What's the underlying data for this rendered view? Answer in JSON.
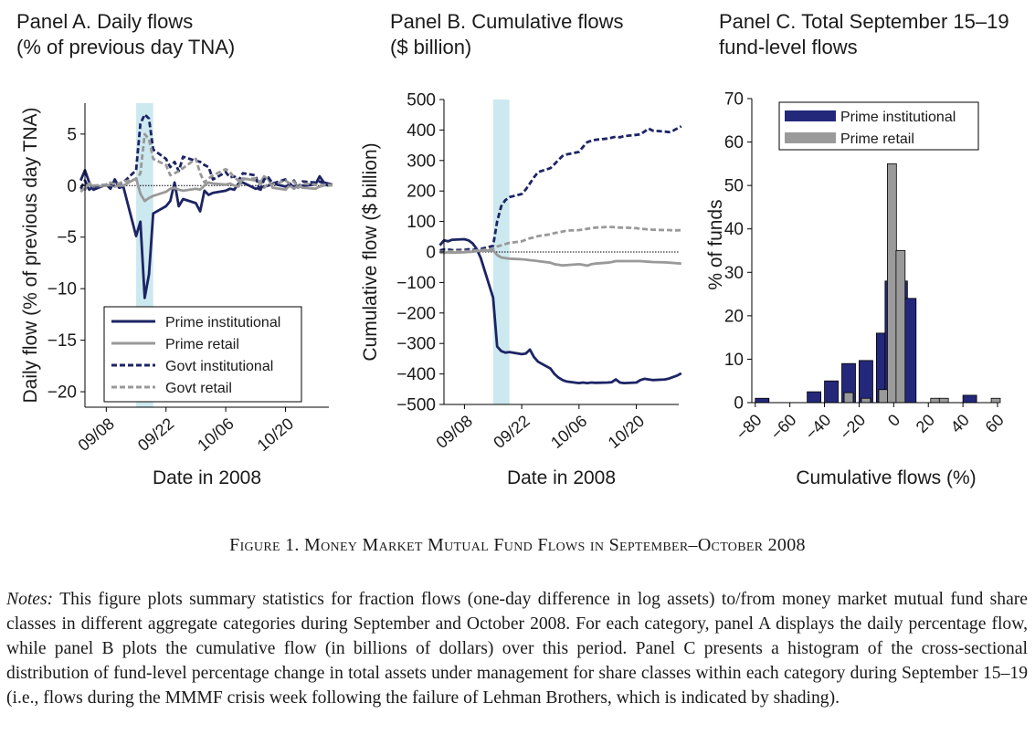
{
  "panels": {
    "a": {
      "title_line1": "Panel A. Daily flows",
      "title_line2": "(% of previous day TNA)"
    },
    "b": {
      "title_line1": "Panel B. Cumulative flows",
      "title_line2": "($ billion)"
    },
    "c": {
      "title_line1": "Panel C. Total September 15–19",
      "title_line2": "fund-level flows"
    }
  },
  "caption": "Figure 1. Money Market Mutual Fund Flows in September–October 2008",
  "notes": {
    "label": "Notes:",
    "text": " This figure plots summary statistics for fraction flows (one-day difference in log assets) to/from money market mutual fund share classes in different aggregate categories during September and October 2008. For each category, panel A displays the daily percentage flow, while panel B plots the cumulative flow (in billions of dollars) over this period. Panel C presents a histogram of the cross-sectional distribution of fund-level percentage change in total assets under management for share classes within each category during September 15–19 (i.e., flows during the MMMF crisis week following the failure of Lehman Brothers, which is indicated by shading)."
  },
  "colors": {
    "navy": "#1c2464",
    "gray": "#999999",
    "shade": "#cde9f0",
    "bar_navy": "#24287a",
    "bar_gray": "#9a9a9a"
  },
  "chart_data": [
    {
      "type": "line",
      "xlabel": "Date in 2008",
      "ylabel": "Daily flow (% of previous day TNA)",
      "ylim": [
        -21.5,
        8
      ],
      "yticks": [
        5,
        0,
        -5,
        -10,
        -15,
        -20
      ],
      "ytick_labels": [
        "5",
        "0",
        "−5",
        "−10",
        "−15",
        "−20"
      ],
      "xticks": [
        "09/08",
        "09/22",
        "10/06",
        "10/20"
      ],
      "shaded_period": [
        "2008-09-15",
        "2008-09-19"
      ],
      "legend_position": "lower-right",
      "x": [
        "2008-09-02",
        "2008-09-03",
        "2008-09-04",
        "2008-09-05",
        "2008-09-08",
        "2008-09-09",
        "2008-09-10",
        "2008-09-11",
        "2008-09-12",
        "2008-09-15",
        "2008-09-16",
        "2008-09-17",
        "2008-09-18",
        "2008-09-19",
        "2008-09-22",
        "2008-09-23",
        "2008-09-24",
        "2008-09-25",
        "2008-09-26",
        "2008-09-29",
        "2008-09-30",
        "2008-10-01",
        "2008-10-02",
        "2008-10-03",
        "2008-10-06",
        "2008-10-07",
        "2008-10-08",
        "2008-10-09",
        "2008-10-10",
        "2008-10-13",
        "2008-10-14",
        "2008-10-15",
        "2008-10-16",
        "2008-10-17",
        "2008-10-20",
        "2008-10-21",
        "2008-10-22",
        "2008-10-23",
        "2008-10-24",
        "2008-10-27",
        "2008-10-28",
        "2008-10-29",
        "2008-10-30",
        "2008-10-31"
      ],
      "series": [
        {
          "name": "Prime institutional",
          "style": "solid",
          "color": "navy",
          "values": [
            0.5,
            1.5,
            0.3,
            -0.4,
            0.1,
            -0.3,
            0.6,
            -0.2,
            -0.1,
            -4.9,
            -3.5,
            -10.9,
            -8.6,
            -2.7,
            -2.0,
            -1.5,
            0.3,
            -2.0,
            -1.3,
            -1.7,
            -2.5,
            -0.5,
            -0.9,
            -0.7,
            -0.5,
            -0.3,
            -0.4,
            0.2,
            0.3,
            -0.3,
            -0.2,
            -0.1,
            0.0,
            0.2,
            -0.1,
            0.1,
            -0.1,
            0.0,
            0.0,
            0.1,
            0.9,
            0.3,
            0.2,
            0.1
          ]
        },
        {
          "name": "Prime retail",
          "style": "solid",
          "color": "gray",
          "values": [
            -0.3,
            -0.4,
            0.2,
            -0.1,
            0.0,
            0.1,
            -0.1,
            0.0,
            0.0,
            0.7,
            -0.8,
            -1.5,
            -1.2,
            -1.0,
            -0.6,
            -0.3,
            -0.2,
            -0.4,
            -0.5,
            -0.3,
            -0.4,
            0.0,
            0.3,
            0.2,
            0.1,
            0.2,
            0.0,
            -0.1,
            0.7,
            0.5,
            0.2,
            0.9,
            0.6,
            -0.2,
            -0.4,
            0.0,
            -0.3,
            0.0,
            -0.2,
            -0.3,
            -0.1,
            0.0,
            0.1,
            0.0
          ]
        },
        {
          "name": "Govt institutional",
          "style": "dashed",
          "color": "navy",
          "values": [
            -0.3,
            0.5,
            -0.4,
            -0.1,
            0.1,
            0.2,
            0.0,
            0.2,
            0.3,
            1.5,
            6.0,
            6.9,
            6.5,
            3.5,
            2.6,
            1.8,
            2.3,
            1.4,
            2.8,
            2.4,
            2.3,
            2.0,
            1.8,
            0.6,
            1.3,
            0.8,
            0.9,
            0.5,
            1.2,
            1.0,
            -0.6,
            0.6,
            0.8,
            0.2,
            0.6,
            0.1,
            0.5,
            -0.2,
            0.4,
            0.3,
            0.4,
            0.2,
            0.0,
            0.1
          ]
        },
        {
          "name": "Govt retail",
          "style": "dashed",
          "color": "gray",
          "values": [
            -0.6,
            -0.2,
            0.2,
            0.0,
            0.1,
            0.3,
            0.1,
            0.2,
            0.4,
            0.6,
            1.2,
            5.0,
            4.5,
            2.6,
            2.0,
            1.0,
            1.2,
            1.4,
            1.7,
            2.6,
            1.2,
            0.3,
            0.7,
            1.0,
            1.6,
            1.3,
            0.8,
            0.5,
            0.6,
            0.7,
            0.4,
            -0.2,
            0.2,
            0.1,
            0.5,
            0.2,
            0.4,
            -0.2,
            0.2,
            0.1,
            0.0,
            0.1,
            0.0,
            0.1
          ]
        }
      ]
    },
    {
      "type": "line",
      "xlabel": "Date in 2008",
      "ylabel": "Cumulative flow ($ billion)",
      "ylim": [
        -500,
        500
      ],
      "yticks": [
        500,
        400,
        300,
        200,
        100,
        0,
        -100,
        -200,
        -300,
        -400,
        -500
      ],
      "ytick_labels": [
        "500",
        "400",
        "300",
        "200",
        "100",
        "0",
        "−100",
        "−200",
        "−300",
        "−400",
        "−500"
      ],
      "xticks": [
        "09/08",
        "09/22",
        "10/06",
        "10/20"
      ],
      "shaded_period": [
        "2008-09-15",
        "2008-09-19"
      ],
      "x": [
        "2008-09-02",
        "2008-09-03",
        "2008-09-04",
        "2008-09-05",
        "2008-09-08",
        "2008-09-09",
        "2008-09-10",
        "2008-09-11",
        "2008-09-12",
        "2008-09-15",
        "2008-09-16",
        "2008-09-17",
        "2008-09-18",
        "2008-09-19",
        "2008-09-22",
        "2008-09-23",
        "2008-09-24",
        "2008-09-25",
        "2008-09-26",
        "2008-09-29",
        "2008-09-30",
        "2008-10-01",
        "2008-10-02",
        "2008-10-03",
        "2008-10-06",
        "2008-10-07",
        "2008-10-08",
        "2008-10-09",
        "2008-10-10",
        "2008-10-13",
        "2008-10-14",
        "2008-10-15",
        "2008-10-16",
        "2008-10-17",
        "2008-10-20",
        "2008-10-21",
        "2008-10-22",
        "2008-10-23",
        "2008-10-24",
        "2008-10-27",
        "2008-10-28",
        "2008-10-29",
        "2008-10-30",
        "2008-10-31"
      ],
      "series": [
        {
          "name": "Prime institutional",
          "style": "solid",
          "color": "navy",
          "values": [
            22,
            38,
            35,
            40,
            42,
            38,
            28,
            10,
            -20,
            -150,
            -310,
            -325,
            -330,
            -328,
            -335,
            -333,
            -320,
            -345,
            -360,
            -382,
            -400,
            -412,
            -420,
            -425,
            -430,
            -428,
            -430,
            -428,
            -429,
            -428,
            -427,
            -418,
            -428,
            -430,
            -428,
            -420,
            -416,
            -418,
            -420,
            -418,
            -415,
            -410,
            -405,
            -398
          ]
        },
        {
          "name": "Prime retail",
          "style": "solid",
          "color": "gray",
          "values": [
            -2,
            -3,
            -1,
            -2,
            -1,
            0,
            1,
            3,
            4,
            5,
            -10,
            -18,
            -20,
            -22,
            -24,
            -25,
            -27,
            -28,
            -30,
            -35,
            -40,
            -42,
            -44,
            -43,
            -40,
            -42,
            -45,
            -40,
            -38,
            -35,
            -33,
            -30,
            -30,
            -30,
            -30,
            -30,
            -31,
            -32,
            -33,
            -34,
            -35,
            -36,
            -37,
            -38
          ]
        },
        {
          "name": "Govt institutional",
          "style": "dashed",
          "color": "navy",
          "values": [
            5,
            8,
            8,
            6,
            7,
            9,
            7,
            8,
            10,
            20,
            100,
            150,
            170,
            180,
            190,
            205,
            225,
            245,
            262,
            275,
            288,
            302,
            315,
            320,
            328,
            345,
            360,
            365,
            368,
            372,
            375,
            378,
            376,
            380,
            384,
            386,
            395,
            405,
            398,
            395,
            393,
            398,
            405,
            412
          ]
        },
        {
          "name": "Govt retail",
          "style": "dashed",
          "color": "gray",
          "values": [
            0,
            1,
            2,
            2,
            3,
            3,
            4,
            5,
            6,
            10,
            18,
            22,
            26,
            30,
            35,
            40,
            45,
            48,
            52,
            58,
            62,
            64,
            67,
            70,
            72,
            74,
            76,
            78,
            80,
            82,
            82,
            81,
            80,
            80,
            78,
            76,
            75,
            74,
            73,
            72,
            72,
            71,
            71,
            72
          ]
        }
      ]
    },
    {
      "type": "bar",
      "title": "",
      "xlabel": "Cumulative flows (%)",
      "ylabel": "% of funds",
      "ylim": [
        0,
        70
      ],
      "yticks": [
        0,
        10,
        20,
        30,
        40,
        50,
        60,
        70
      ],
      "xlim": [
        -82,
        60
      ],
      "xticks": [
        -80,
        -60,
        -40,
        -20,
        0,
        20,
        40,
        60
      ],
      "xtick_labels": [
        "−80",
        "−60",
        "−40",
        "−20",
        "0",
        "20",
        "40",
        "60"
      ],
      "legend_position": "top-left",
      "series": [
        {
          "name": "Prime institutional",
          "color": "bar_navy",
          "bins": [
            -80,
            -60,
            -50,
            -40,
            -30,
            -20,
            -10,
            -5,
            0,
            5,
            40
          ],
          "values": [
            1.0,
            0.0,
            2.5,
            5.0,
            9.0,
            9.7,
            16.0,
            28.0,
            28.0,
            24.0,
            1.7
          ]
        },
        {
          "name": "Prime retail",
          "color": "bar_gray",
          "bins": [
            -40,
            -30,
            -20,
            -10,
            -5,
            0,
            5,
            20,
            25,
            55
          ],
          "values": [
            0.0,
            2.3,
            1.0,
            3.0,
            55.0,
            35.0,
            0.0,
            1.0,
            1.0,
            1.0
          ]
        }
      ]
    }
  ]
}
